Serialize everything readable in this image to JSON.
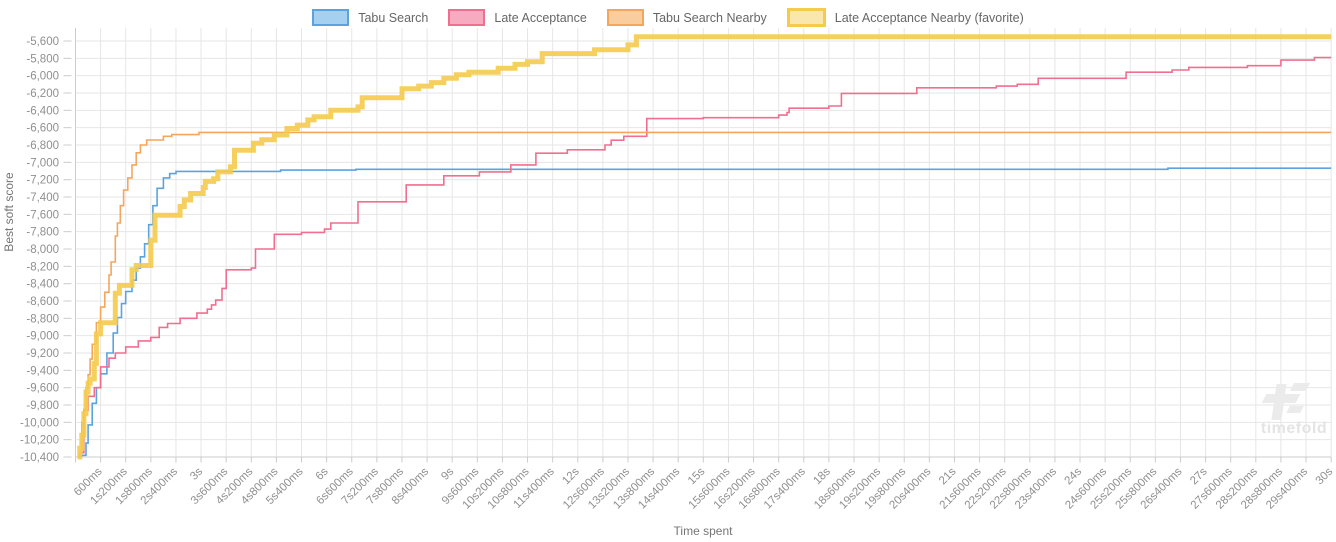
{
  "legend": [
    {
      "label": "Tabu Search",
      "fill": "#a6d0f0",
      "stroke": "#5ba3df",
      "thick": false
    },
    {
      "label": "Late Acceptance",
      "fill": "#f7abc0",
      "stroke": "#f06f90",
      "thick": false
    },
    {
      "label": "Tabu Search Nearby",
      "fill": "#f9cd9d",
      "stroke": "#f4a65c",
      "thick": false
    },
    {
      "label": "Late Acceptance Nearby (favorite)",
      "fill": "#fae7ad",
      "stroke": "#f5cb4d",
      "thick": true
    }
  ],
  "axes": {
    "y_title": "Best soft score",
    "x_title": "Time spent",
    "y_tick_labels": [
      "-5,600",
      "-5,800",
      "-6,000",
      "-6,200",
      "-6,400",
      "-6,600",
      "-6,800",
      "-7,000",
      "-7,200",
      "-7,400",
      "-7,600",
      "-7,800",
      "-8,000",
      "-8,200",
      "-8,400",
      "-8,600",
      "-8,800",
      "-9,000",
      "-9,200",
      "-9,400",
      "-9,600",
      "-9,800",
      "-10,000",
      "-10,200",
      "-10,400"
    ],
    "x_tick_labels": [
      "600ms",
      "1s200ms",
      "1s800ms",
      "2s400ms",
      "3s",
      "3s600ms",
      "4s200ms",
      "4s800ms",
      "5s400ms",
      "6s",
      "6s600ms",
      "7s200ms",
      "7s800ms",
      "8s400ms",
      "9s",
      "9s600ms",
      "10s200ms",
      "10s800ms",
      "11s400ms",
      "12s",
      "12s600ms",
      "13s200ms",
      "13s800ms",
      "14s400ms",
      "15s",
      "15s600ms",
      "16s200ms",
      "16s800ms",
      "17s400ms",
      "18s",
      "18s600ms",
      "19s200ms",
      "19s800ms",
      "20s400ms",
      "21s",
      "21s600ms",
      "22s200ms",
      "22s800ms",
      "23s400ms",
      "24s",
      "24s600ms",
      "25s200ms",
      "25s800ms",
      "26s400ms",
      "27s",
      "27s600ms",
      "28s200ms",
      "28s800ms",
      "29s400ms",
      "30s"
    ],
    "tick_color": "#8f8f8f",
    "grid_color": "#e6e6e6",
    "axis_color": "#cccccc",
    "title_color": "#757575"
  },
  "watermark": {
    "text": "timefold"
  },
  "chart_data": {
    "type": "line",
    "step": "after",
    "xlabel": "Time spent",
    "ylabel": "Best soft score",
    "x_unit": "milliseconds",
    "xlim_ms": [
      0,
      30000
    ],
    "x_tick_interval_ms": 600,
    "ylim": [
      -10400,
      -5600
    ],
    "y_tick_interval": 200,
    "grid": true,
    "legend_position": "top",
    "series": [
      {
        "name": "Tabu Search",
        "color": "#5ba3df",
        "line_width": 1.6,
        "favorite": false,
        "points_ms_score": [
          [
            100,
            -10390
          ],
          [
            150,
            -10380
          ],
          [
            250,
            -10240
          ],
          [
            300,
            -10030
          ],
          [
            400,
            -9780
          ],
          [
            500,
            -9600
          ],
          [
            600,
            -9440
          ],
          [
            750,
            -9200
          ],
          [
            900,
            -8970
          ],
          [
            1000,
            -8790
          ],
          [
            1100,
            -8630
          ],
          [
            1200,
            -8490
          ],
          [
            1350,
            -8360
          ],
          [
            1450,
            -8220
          ],
          [
            1550,
            -8090
          ],
          [
            1650,
            -7940
          ],
          [
            1750,
            -7720
          ],
          [
            1850,
            -7500
          ],
          [
            1950,
            -7300
          ],
          [
            2100,
            -7180
          ],
          [
            2250,
            -7130
          ],
          [
            2400,
            -7105
          ],
          [
            4900,
            -7090
          ],
          [
            6700,
            -7080
          ],
          [
            26100,
            -7068
          ],
          [
            30000,
            -7068
          ]
        ]
      },
      {
        "name": "Late Acceptance",
        "color": "#f06f90",
        "line_width": 1.6,
        "favorite": false,
        "points_ms_score": [
          [
            100,
            -10350
          ],
          [
            200,
            -9860
          ],
          [
            300,
            -9700
          ],
          [
            450,
            -9600
          ],
          [
            600,
            -9360
          ],
          [
            800,
            -9260
          ],
          [
            950,
            -9200
          ],
          [
            1200,
            -9130
          ],
          [
            1500,
            -9060
          ],
          [
            1800,
            -9020
          ],
          [
            2000,
            -8905
          ],
          [
            2200,
            -8860
          ],
          [
            2500,
            -8800
          ],
          [
            2900,
            -8740
          ],
          [
            3150,
            -8695
          ],
          [
            3250,
            -8645
          ],
          [
            3350,
            -8590
          ],
          [
            3500,
            -8455
          ],
          [
            3600,
            -8240
          ],
          [
            4200,
            -8220
          ],
          [
            4300,
            -8000
          ],
          [
            4750,
            -7830
          ],
          [
            5400,
            -7810
          ],
          [
            5950,
            -7770
          ],
          [
            6100,
            -7700
          ],
          [
            6750,
            -7455
          ],
          [
            7900,
            -7260
          ],
          [
            8800,
            -7155
          ],
          [
            9650,
            -7110
          ],
          [
            10400,
            -7030
          ],
          [
            11000,
            -6895
          ],
          [
            11750,
            -6855
          ],
          [
            12650,
            -6800
          ],
          [
            12800,
            -6745
          ],
          [
            13100,
            -6700
          ],
          [
            13650,
            -6495
          ],
          [
            15000,
            -6485
          ],
          [
            16800,
            -6455
          ],
          [
            17000,
            -6425
          ],
          [
            17050,
            -6375
          ],
          [
            18000,
            -6350
          ],
          [
            18300,
            -6205
          ],
          [
            20100,
            -6140
          ],
          [
            22000,
            -6120
          ],
          [
            22500,
            -6100
          ],
          [
            23000,
            -6030
          ],
          [
            25100,
            -5960
          ],
          [
            26200,
            -5935
          ],
          [
            26600,
            -5905
          ],
          [
            28000,
            -5885
          ],
          [
            28800,
            -5820
          ],
          [
            29600,
            -5790
          ],
          [
            30000,
            -5790
          ]
        ]
      },
      {
        "name": "Tabu Search Nearby",
        "color": "#f4a65c",
        "line_width": 1.6,
        "favorite": false,
        "points_ms_score": [
          [
            50,
            -10400
          ],
          [
            100,
            -10350
          ],
          [
            150,
            -10000
          ],
          [
            200,
            -9850
          ],
          [
            250,
            -9600
          ],
          [
            300,
            -9450
          ],
          [
            350,
            -9270
          ],
          [
            400,
            -9100
          ],
          [
            500,
            -8850
          ],
          [
            600,
            -8670
          ],
          [
            700,
            -8500
          ],
          [
            800,
            -8300
          ],
          [
            850,
            -8150
          ],
          [
            950,
            -7850
          ],
          [
            1000,
            -7700
          ],
          [
            1070,
            -7500
          ],
          [
            1150,
            -7320
          ],
          [
            1250,
            -7180
          ],
          [
            1350,
            -7030
          ],
          [
            1450,
            -6890
          ],
          [
            1550,
            -6800
          ],
          [
            1700,
            -6742
          ],
          [
            2100,
            -6700
          ],
          [
            2300,
            -6680
          ],
          [
            2950,
            -6655
          ],
          [
            30000,
            -6655
          ]
        ]
      },
      {
        "name": "Late Acceptance Nearby (favorite)",
        "color": "#f5cb4d",
        "line_width": 5,
        "favorite": true,
        "points_ms_score": [
          [
            50,
            -10400
          ],
          [
            100,
            -10300
          ],
          [
            150,
            -10150
          ],
          [
            200,
            -9900
          ],
          [
            250,
            -9650
          ],
          [
            300,
            -9550
          ],
          [
            350,
            -9500
          ],
          [
            450,
            -9320
          ],
          [
            500,
            -8980
          ],
          [
            600,
            -8850
          ],
          [
            950,
            -8510
          ],
          [
            1050,
            -8420
          ],
          [
            1350,
            -8240
          ],
          [
            1450,
            -8190
          ],
          [
            1800,
            -7900
          ],
          [
            1900,
            -7610
          ],
          [
            2500,
            -7510
          ],
          [
            2600,
            -7435
          ],
          [
            2750,
            -7360
          ],
          [
            3050,
            -7290
          ],
          [
            3100,
            -7220
          ],
          [
            3300,
            -7190
          ],
          [
            3400,
            -7110
          ],
          [
            3700,
            -7050
          ],
          [
            3800,
            -6860
          ],
          [
            4250,
            -6780
          ],
          [
            4450,
            -6740
          ],
          [
            4750,
            -6685
          ],
          [
            5050,
            -6610
          ],
          [
            5300,
            -6570
          ],
          [
            5550,
            -6510
          ],
          [
            5700,
            -6475
          ],
          [
            6100,
            -6400
          ],
          [
            6750,
            -6360
          ],
          [
            6850,
            -6255
          ],
          [
            7800,
            -6150
          ],
          [
            8200,
            -6120
          ],
          [
            8500,
            -6080
          ],
          [
            8800,
            -6030
          ],
          [
            9100,
            -5990
          ],
          [
            9400,
            -5960
          ],
          [
            10100,
            -5915
          ],
          [
            10500,
            -5870
          ],
          [
            10800,
            -5840
          ],
          [
            11150,
            -5745
          ],
          [
            12400,
            -5700
          ],
          [
            13200,
            -5645
          ],
          [
            13400,
            -5550
          ],
          [
            30000,
            -5550
          ]
        ]
      }
    ]
  }
}
